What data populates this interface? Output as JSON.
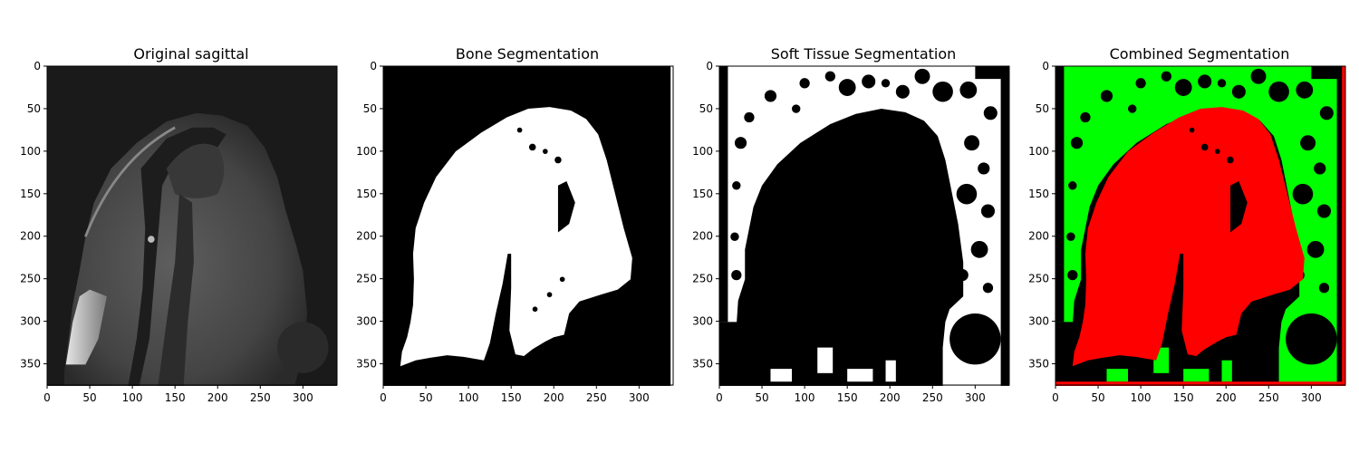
{
  "figure": {
    "panels": [
      {
        "title": "Original sagittal"
      },
      {
        "title": "Bone Segmentation"
      },
      {
        "title": "Soft Tissue Segmentation"
      },
      {
        "title": "Combined Segmentation"
      }
    ],
    "x_ticks": [
      "0",
      "50",
      "100",
      "150",
      "200",
      "250",
      "300"
    ],
    "y_ticks": [
      "0",
      "50",
      "100",
      "150",
      "200",
      "250",
      "300",
      "350"
    ],
    "image_width": 340,
    "image_height": 375
  },
  "colors": {
    "background": "#000000",
    "segment_white": "#ffffff",
    "bone": "#ff0000",
    "soft_tissue": "#00ff00",
    "mri_dark": "#1a1a1a",
    "mri_tissue": "#595959",
    "mri_bright": "#d9d9d9"
  }
}
